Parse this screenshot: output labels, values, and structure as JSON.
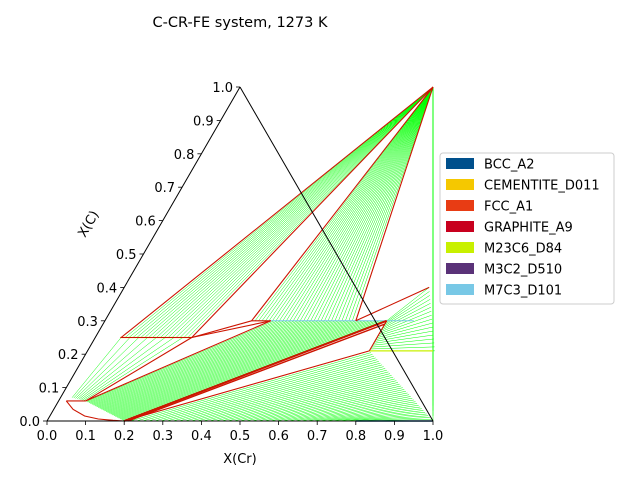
{
  "chart_data": {
    "type": "ternary-phase-diagram",
    "title": "C-CR-FE system, 1273 K",
    "xlabel": "X(Cr)",
    "ylabel": "X(C)",
    "xlim": [
      0,
      1
    ],
    "ylim": [
      0,
      1
    ],
    "x_ticks": [
      "0.0",
      "0.1",
      "0.2",
      "0.3",
      "0.4",
      "0.5",
      "0.6",
      "0.7",
      "0.8",
      "0.9",
      "1.0"
    ],
    "y_ticks": [
      "0.0",
      "0.1",
      "0.2",
      "0.3",
      "0.4",
      "0.5",
      "0.6",
      "0.7",
      "0.8",
      "0.9",
      "1.0"
    ],
    "legend_position": "right",
    "legend": [
      {
        "name": "BCC_A2",
        "color": "#00508c"
      },
      {
        "name": "CEMENTITE_D011",
        "color": "#f5c800"
      },
      {
        "name": "FCC_A1",
        "color": "#e83c14"
      },
      {
        "name": "GRAPHITE_A9",
        "color": "#c8001e"
      },
      {
        "name": "M23C6_D84",
        "color": "#c8f000"
      },
      {
        "name": "M3C2_D510",
        "color": "#5a3278"
      },
      {
        "name": "M7C3_D101",
        "color": "#78c8e6"
      }
    ],
    "colors": {
      "tie_line": "#00ff00",
      "phase_boundary": "#cc1400",
      "triangle_edge": "#000000"
    },
    "regions": {
      "graphite_cementite_tielines": {
        "apex": [
          0.5,
          1.0
        ],
        "a": [
          0.067,
          0.25
        ],
        "b": [
          0.25,
          0.25
        ]
      },
      "graphite_m7c3_tielines": {
        "apex": [
          0.5,
          1.0
        ],
        "a": [
          0.38,
          0.3
        ],
        "b": [
          0.65,
          0.3
        ]
      },
      "graphite_m3c2_tielines": {
        "apex": [
          0.5,
          1.0
        ],
        "a": [
          0.8,
          0.4
        ],
        "b": [
          1.0,
          0.0
        ]
      },
      "m7c3_m23c6_tielines": {
        "a1": [
          0.73,
          0.3
        ],
        "a2": [
          0.73,
          0.21
        ],
        "b1": [
          0.79,
          0.4
        ],
        "b2": [
          0.9,
          0.21
        ]
      },
      "fcc_m7c3_tielines": {
        "a1": [
          0.07,
          0.06
        ],
        "a2": [
          0.2,
          0.0
        ],
        "b1": [
          0.43,
          0.3
        ],
        "b2": [
          0.73,
          0.3
        ]
      },
      "fcc_m23c6_tielines": {
        "a1": [
          0.2,
          0.0
        ],
        "a2": [
          0.83,
          0.0
        ],
        "b1": [
          0.73,
          0.21
        ],
        "b2": [
          1.0,
          0.0
        ]
      },
      "fcc_cementite_tielines": {
        "a1": [
          0.03,
          0.07
        ],
        "a2": [
          0.07,
          0.06
        ],
        "b1": [
          0.067,
          0.25
        ],
        "b2": [
          0.25,
          0.25
        ]
      },
      "m7c3_m23c6_tie_x": 0.73,
      "m23c6_bcc_line_y": 0.21,
      "graphite_m7c3_three_phase_y": 0.3
    },
    "boundaries": [
      [
        [
          0.5,
          1.0
        ],
        [
          0.067,
          0.25
        ]
      ],
      [
        [
          0.5,
          1.0
        ],
        [
          0.25,
          0.25
        ]
      ],
      [
        [
          0.5,
          1.0
        ],
        [
          0.38,
          0.3
        ]
      ],
      [
        [
          0.5,
          1.0
        ],
        [
          0.65,
          0.3
        ]
      ],
      [
        [
          0.065,
          0.25
        ],
        [
          0.25,
          0.25
        ]
      ],
      [
        [
          0.25,
          0.25
        ],
        [
          0.38,
          0.3
        ]
      ],
      [
        [
          0.25,
          0.25
        ],
        [
          0.43,
          0.3
        ]
      ],
      [
        [
          0.38,
          0.3
        ],
        [
          0.43,
          0.3
        ]
      ],
      [
        [
          0.65,
          0.3
        ],
        [
          0.79,
          0.4
        ]
      ],
      [
        [
          0.07,
          0.06
        ],
        [
          0.25,
          0.25
        ]
      ],
      [
        [
          0.07,
          0.06
        ],
        [
          0.43,
          0.3
        ]
      ],
      [
        [
          0.2,
          0.0
        ],
        [
          0.73,
          0.3
        ]
      ],
      [
        [
          0.2,
          0.0
        ],
        [
          0.73,
          0.21
        ]
      ],
      [
        [
          0.73,
          0.3
        ],
        [
          0.73,
          0.21
        ]
      ],
      [
        [
          0.02,
          0.06
        ],
        [
          0.07,
          0.06
        ]
      ]
    ]
  }
}
